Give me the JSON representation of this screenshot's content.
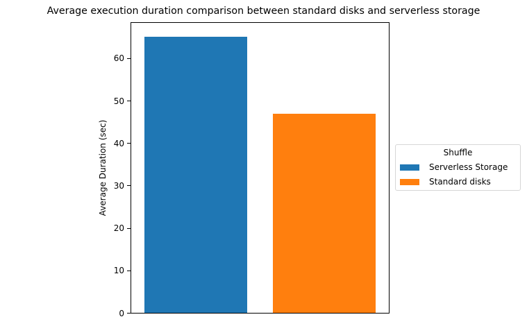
{
  "chart_data": {
    "type": "bar",
    "title": "Average execution duration comparison between standard disks and serverless storage",
    "xlabel": "",
    "ylabel": "Average Duration (sec)",
    "categories": [
      "Serverless Storage",
      "Standard disks"
    ],
    "values": [
      65,
      47
    ],
    "colors": [
      "#1f77b4",
      "#ff7f0e"
    ],
    "ylim": [
      0,
      68.5
    ],
    "yticks": [
      0,
      10,
      20,
      30,
      40,
      50,
      60
    ],
    "grid": false,
    "legend": {
      "title": "Shuffle",
      "position": "center left, outside right of axes",
      "entries": [
        {
          "label": "Serverless Storage",
          "color": "#1f77b4"
        },
        {
          "label": "Standard disks",
          "color": "#ff7f0e"
        }
      ]
    }
  }
}
